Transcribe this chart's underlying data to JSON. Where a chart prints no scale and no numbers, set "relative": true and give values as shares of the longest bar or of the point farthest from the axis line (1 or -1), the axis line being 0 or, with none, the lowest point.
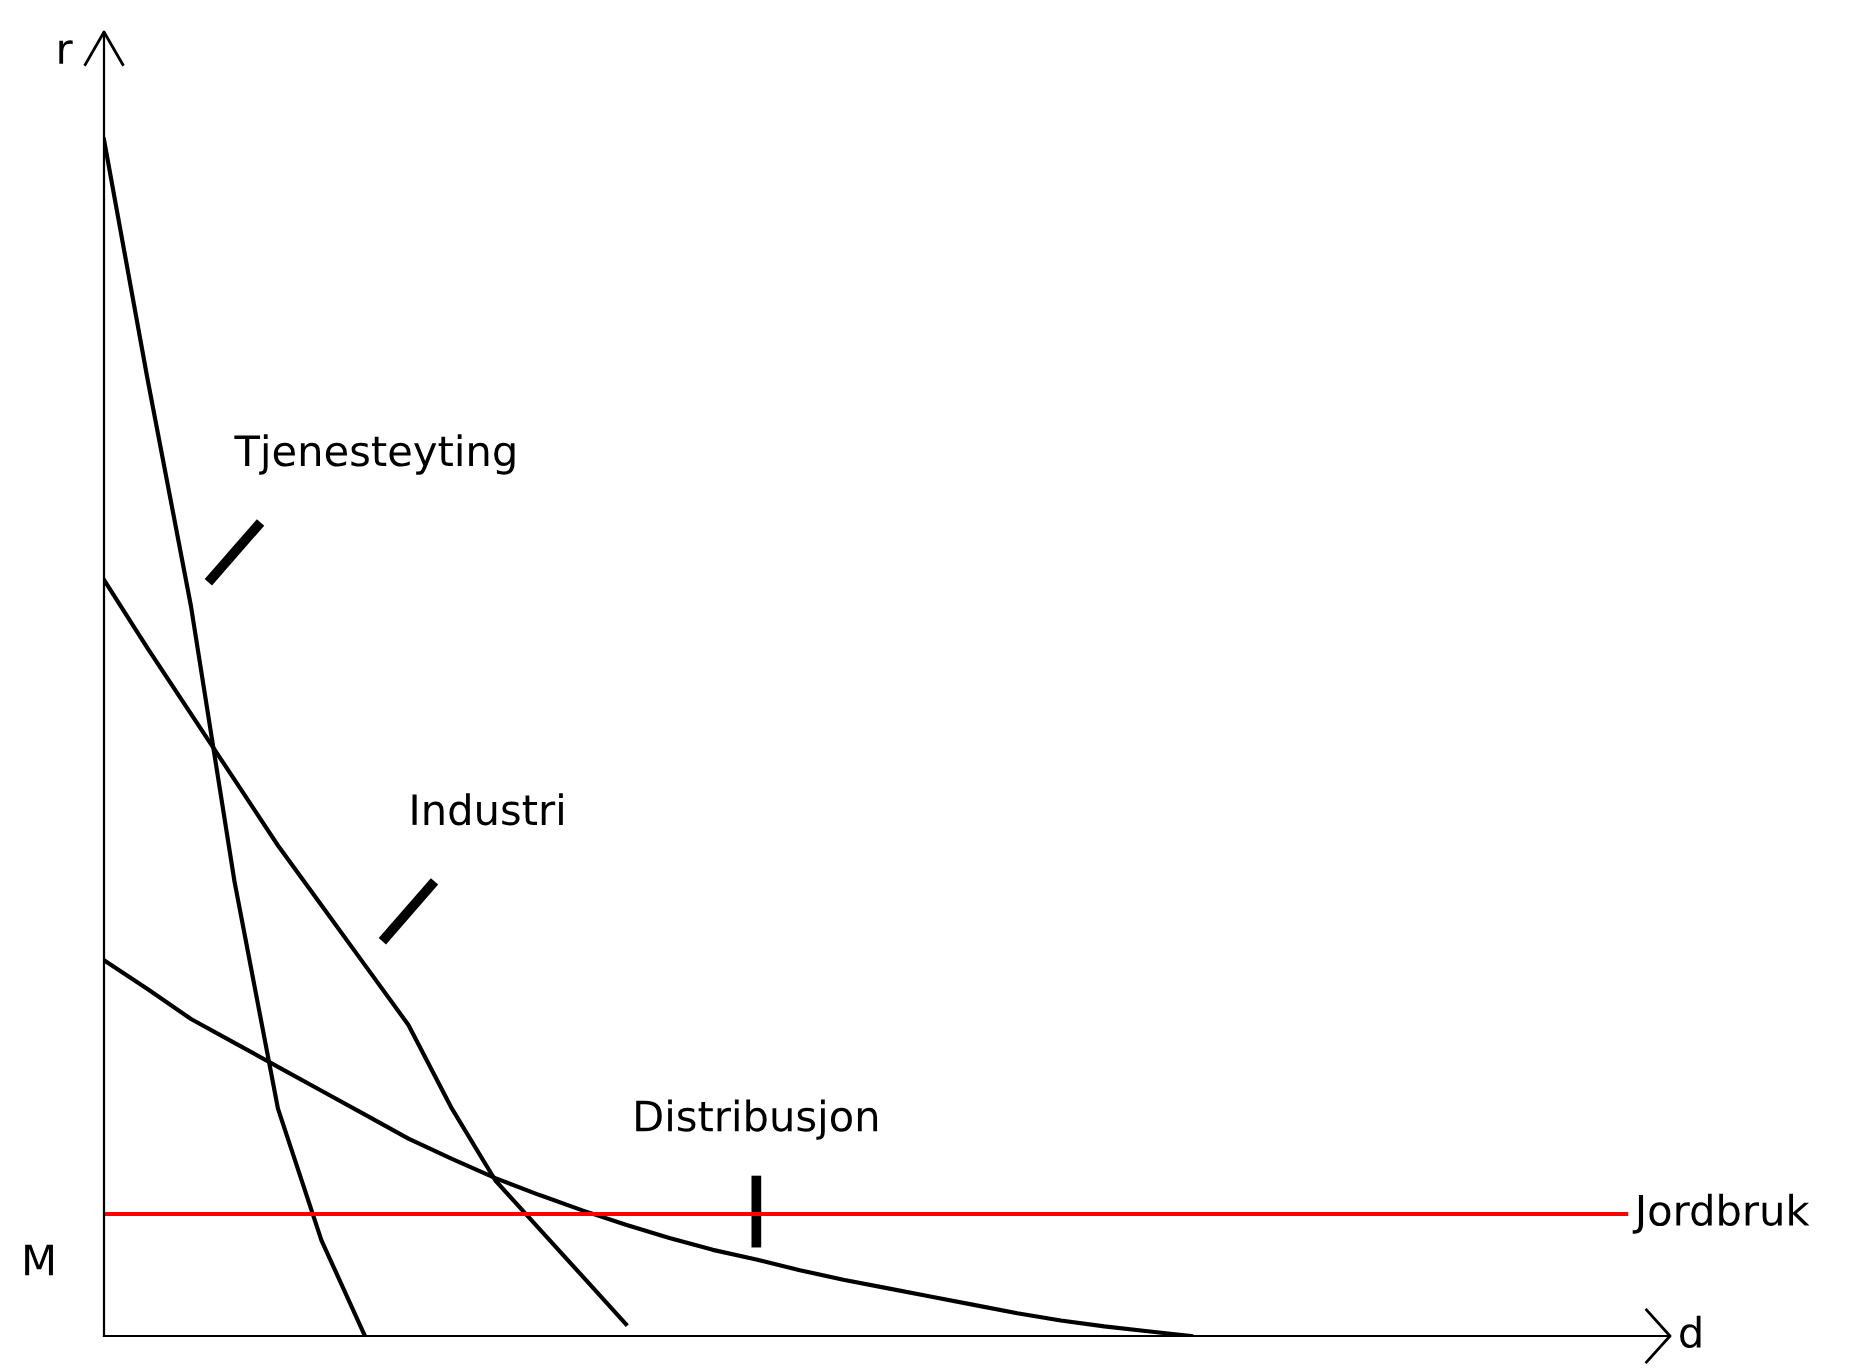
{
  "chart_data": {
    "type": "line",
    "relative": true,
    "xlabel": "d",
    "ylabel": "r",
    "annotations": [
      "M"
    ],
    "legend": false,
    "marker": "none",
    "line_style": "solid",
    "categories": [
      null,
      null,
      null,
      null,
      null,
      null,
      null,
      null,
      null,
      null,
      null,
      null,
      null,
      null,
      null,
      null,
      null,
      null,
      null,
      null,
      null,
      null,
      null,
      null,
      null,
      null,
      null,
      null,
      null,
      null,
      null,
      null,
      null,
      null,
      null,
      null
    ],
    "series": [
      {
        "name": "Tjenesteyting",
        "color": "#000000",
        "values": [
          1.0,
          0.8,
          0.61,
          0.38,
          0.19,
          0.08,
          0,
          null,
          null,
          null,
          null,
          null,
          null,
          null,
          null,
          null,
          null,
          null,
          null,
          null,
          null,
          null,
          null,
          null,
          null,
          null,
          null,
          null,
          null,
          null,
          null,
          null,
          null,
          null,
          null,
          null
        ]
      },
      {
        "name": "Industri",
        "color": "#000000",
        "values": [
          0.632,
          0.575,
          0.52,
          0.465,
          0.41,
          0.36,
          0.31,
          0.26,
          0.19,
          0.13,
          0.09,
          0.05,
          0.01,
          null,
          null,
          null,
          null,
          null,
          null,
          null,
          null,
          null,
          null,
          null,
          null,
          null,
          null,
          null,
          null,
          null,
          null,
          null,
          null,
          null,
          null,
          null
        ]
      },
      {
        "name": "Distribusjon",
        "color": "#000000",
        "values": [
          0.314,
          0.29,
          0.265,
          0.245,
          0.225,
          0.205,
          0.185,
          0.165,
          0.148,
          0.132,
          0.118,
          0.105,
          0.093,
          0.082,
          0.072,
          0.064,
          0.055,
          0.047,
          0.04,
          0.033,
          0.026,
          0.019,
          0.013,
          0.008,
          0.004,
          0,
          null,
          null,
          null,
          null,
          null,
          null,
          null,
          null,
          null,
          null
        ]
      },
      {
        "name": "Jordbruk",
        "color": "#ff0000",
        "values": [
          0.102,
          0.102,
          0.102,
          0.102,
          0.102,
          0.102,
          0.102,
          0.102,
          0.102,
          0.102,
          0.102,
          0.102,
          0.102,
          0.102,
          0.102,
          0.102,
          0.102,
          0.102,
          0.102,
          0.102,
          0.102,
          0.102,
          0.102,
          0.102,
          0.102,
          0.102,
          0.102,
          0.102,
          0.102,
          0.102,
          0.102,
          0.102,
          0.102,
          0.102,
          0.102,
          0.102
        ]
      }
    ]
  }
}
